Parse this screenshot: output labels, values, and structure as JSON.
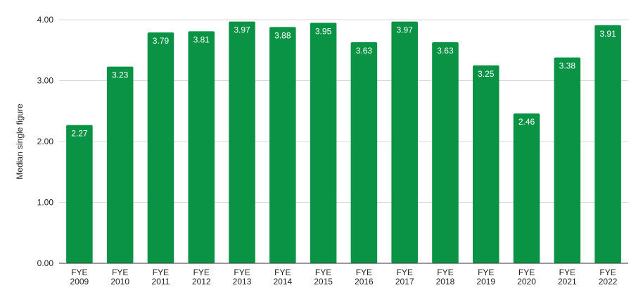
{
  "chart_data": {
    "type": "bar",
    "categories": [
      [
        "FYE",
        "2009"
      ],
      [
        "FYE",
        "2010"
      ],
      [
        "FYE",
        "2011"
      ],
      [
        "FYE",
        "2012"
      ],
      [
        "FYE",
        "2013"
      ],
      [
        "FYE",
        "2014"
      ],
      [
        "FYE",
        "2015"
      ],
      [
        "FYE",
        "2016"
      ],
      [
        "FYE",
        "2017"
      ],
      [
        "FYE",
        "2018"
      ],
      [
        "FYE",
        "2019"
      ],
      [
        "FYE",
        "2020"
      ],
      [
        "FYE",
        "2021"
      ],
      [
        "FYE",
        "2022"
      ]
    ],
    "values": [
      2.27,
      3.23,
      3.79,
      3.81,
      3.97,
      3.88,
      3.95,
      3.63,
      3.97,
      3.63,
      3.25,
      2.46,
      3.38,
      3.91
    ],
    "data_labels": [
      "2.27",
      "3.23",
      "3.79",
      "3.81",
      "3.97",
      "3.88",
      "3.95",
      "3.63",
      "3.97",
      "3.63",
      "3.25",
      "2.46",
      "3.38",
      "3.91"
    ],
    "ylabel": "Median single figure",
    "ylim": [
      0,
      4
    ],
    "yticks": [
      "0.00",
      "1.00",
      "2.00",
      "3.00",
      "4.00"
    ],
    "bar_color": "#0a9345",
    "grid": true,
    "legend": "none"
  }
}
